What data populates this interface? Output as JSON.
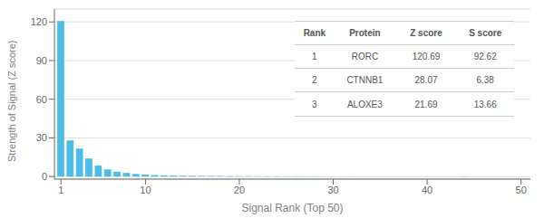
{
  "chart_data": {
    "type": "bar",
    "xlabel": "Signal Rank (Top 50)",
    "ylabel": "Strength of Signal (Z score)",
    "x": [
      1,
      2,
      3,
      4,
      5,
      6,
      7,
      8,
      9,
      10,
      11,
      12,
      13,
      14,
      15,
      16,
      17,
      18,
      19,
      20,
      21,
      22,
      23,
      24,
      25,
      26,
      27,
      28,
      29,
      30,
      31,
      32,
      33,
      34,
      35,
      36,
      37,
      38,
      39,
      40,
      41,
      42,
      43,
      44,
      45,
      46,
      47,
      48,
      49,
      50
    ],
    "values": [
      120.69,
      28.07,
      21.69,
      14.0,
      8.5,
      5.5,
      3.8,
      2.8,
      2.0,
      1.5,
      1.1,
      0.9,
      0.75,
      0.65,
      0.55,
      0.48,
      0.42,
      0.37,
      0.33,
      0.29,
      0.26,
      0.23,
      0.21,
      0.19,
      0.17,
      0.15,
      0.14,
      0.13,
      0.12,
      0.11,
      0.1,
      0.09,
      0.09,
      0.08,
      0.08,
      0.07,
      0.07,
      0.06,
      0.06,
      0.06,
      0.05,
      0.05,
      0.05,
      0.05,
      0.04,
      0.04,
      0.04,
      0.04,
      0.03,
      0.03
    ],
    "color": "#4DBDE8",
    "xlim": [
      0.3,
      51
    ],
    "xticks": [
      1,
      10,
      20,
      30,
      40,
      50
    ],
    "ylim": [
      -2,
      130
    ],
    "yticks": [
      0,
      30,
      60,
      90,
      120
    ],
    "grid": true,
    "table": {
      "columns": [
        "Rank",
        "Protein",
        "Z score",
        "S score"
      ],
      "rows": [
        [
          "1",
          "RORC",
          "120.69",
          "92.62"
        ],
        [
          "2",
          "CTNNB1",
          "28.07",
          "6.38"
        ],
        [
          "3",
          "ALOXE3",
          "21.69",
          "13.66"
        ]
      ]
    }
  }
}
